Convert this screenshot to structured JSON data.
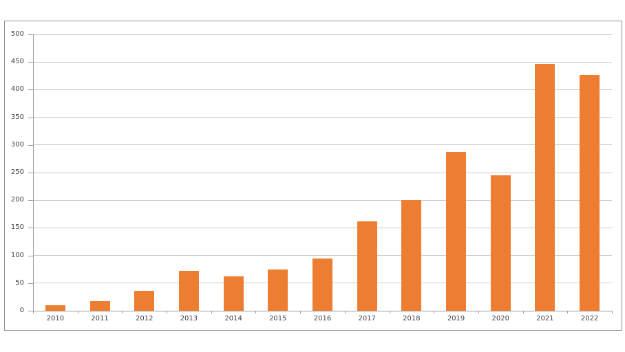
{
  "chart_data": {
    "type": "bar",
    "title": "",
    "xlabel": "",
    "ylabel": "",
    "categories": [
      "2010",
      "2011",
      "2012",
      "2013",
      "2014",
      "2015",
      "2016",
      "2017",
      "2018",
      "2019",
      "2020",
      "2021",
      "2022"
    ],
    "values": [
      10,
      18,
      36,
      72,
      62,
      75,
      95,
      162,
      200,
      287,
      245,
      447,
      426
    ],
    "ylim": [
      0,
      500
    ],
    "ytick_interval": 50,
    "ytick_labels": [
      "0",
      "50",
      "100",
      "150",
      "200",
      "250",
      "300",
      "350",
      "400",
      "450",
      "500"
    ],
    "grid": true,
    "legend_position": "none",
    "colors": {
      "bar": "#ED7D31",
      "gridline": "#C9C9C9",
      "axis": "#9B9B9B",
      "tick": "#9B9B9B",
      "label": "#3F3F3F",
      "frame_border": "#8F8F8F",
      "background": "#FFFFFF"
    }
  }
}
